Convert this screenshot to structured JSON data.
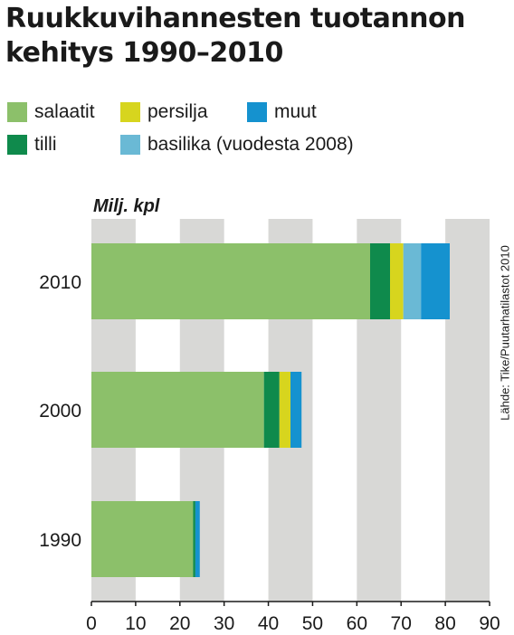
{
  "title_line1": "Ruukkuvihannesten tuotannon",
  "title_line2": "kehitys 1990–2010",
  "source": "Lähde: Tike/Puutarhatilastot 2010",
  "legend": [
    {
      "label": "salaatit",
      "color": "#8cc06a"
    },
    {
      "label": "persilja",
      "color": "#d7d51e"
    },
    {
      "label": "muut",
      "color": "#1592cf"
    },
    {
      "label": "tilli",
      "color": "#0f8a4c"
    },
    {
      "label": "basilika (vuodesta 2008)",
      "color": "#6ab9d5"
    }
  ],
  "chart_data": {
    "type": "bar",
    "orientation": "horizontal",
    "stacked": true,
    "unit_label": "Milj. kpl",
    "categories": [
      "2010",
      "2000",
      "1990"
    ],
    "series": [
      {
        "name": "salaatit",
        "color": "#8cc06a",
        "values": [
          63,
          39,
          23
        ]
      },
      {
        "name": "tilli",
        "color": "#0f8a4c",
        "values": [
          4.5,
          3.5,
          0.5
        ]
      },
      {
        "name": "persilja",
        "color": "#d7d51e",
        "values": [
          3,
          2.5,
          0
        ]
      },
      {
        "name": "basilika (vuodesta 2008)",
        "color": "#6ab9d5",
        "values": [
          4,
          0,
          0
        ]
      },
      {
        "name": "muut",
        "color": "#1592cf",
        "values": [
          6.5,
          2.5,
          1
        ]
      }
    ],
    "xlim": [
      0,
      90
    ],
    "xticks": [
      0,
      10,
      20,
      30,
      40,
      50,
      60,
      70,
      80,
      90
    ],
    "grid": "alternating vertical bands"
  }
}
